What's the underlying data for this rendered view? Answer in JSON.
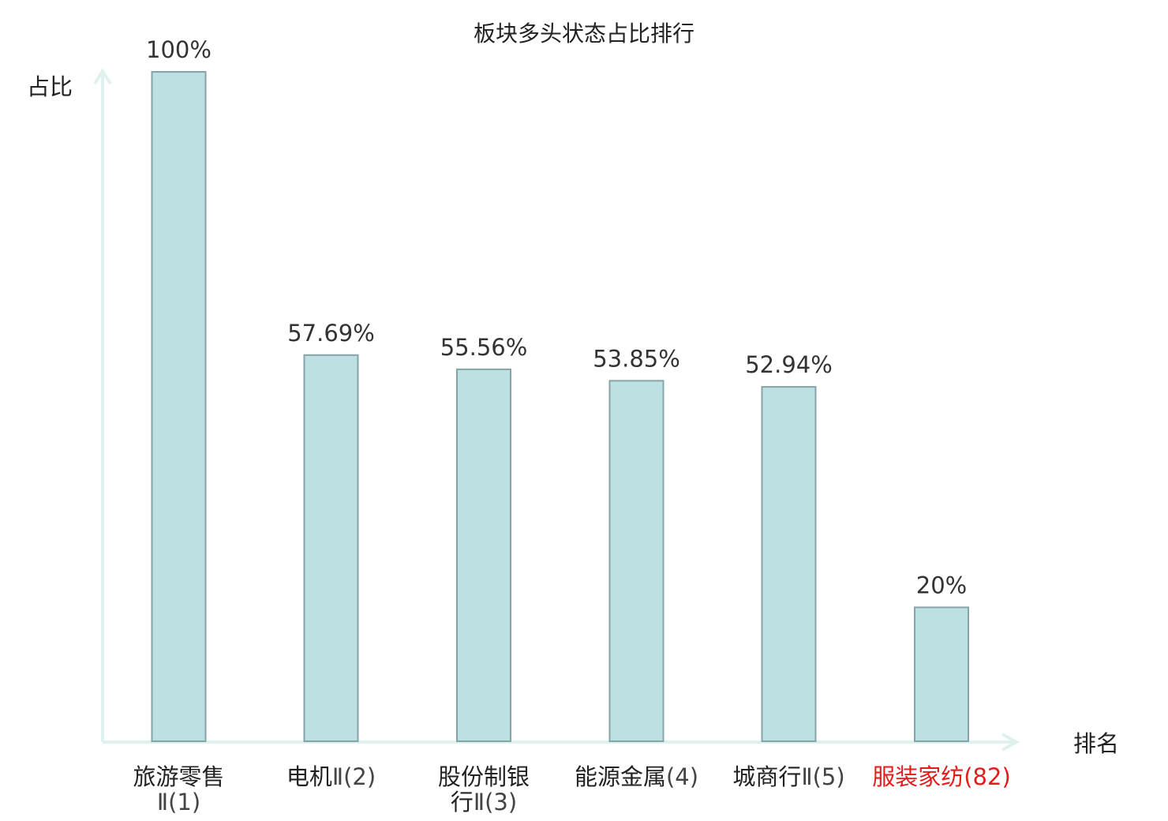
{
  "chart_data": {
    "type": "bar",
    "title": "板块多头状态占比排行",
    "ylabel": "占比",
    "xlabel": "排名",
    "ylim": [
      0,
      100
    ],
    "grid": false,
    "legend": "none",
    "categories": [
      "旅游零售Ⅱ(1)",
      "电机Ⅱ(2)",
      "股份制银行Ⅱ(3)",
      "能源金属(4)",
      "城商行Ⅱ(5)",
      "服装家纺(82)"
    ],
    "category_lines": [
      [
        {
          "text": "旅游零售",
          "cjk": true
        },
        {
          "text": "Ⅱ(1)",
          "cjk": false
        }
      ],
      [
        {
          "text": "电机",
          "cjk": true
        },
        {
          "text": "Ⅱ(2)",
          "cjk": false
        }
      ],
      [
        {
          "text": "股份制银",
          "cjk": true
        },
        {
          "text": "行",
          "cjk": true,
          "tail": "Ⅱ(3)"
        }
      ],
      [
        {
          "text": "能源金属",
          "cjk": true
        },
        {
          "text": "(4)",
          "cjk": false
        }
      ],
      [
        {
          "text": "城商行",
          "cjk": true
        },
        {
          "text": "Ⅱ(5)",
          "cjk": false
        }
      ],
      [
        {
          "text": "服装家纺",
          "cjk": true
        },
        {
          "text": "(82)",
          "cjk": false
        }
      ]
    ],
    "values": [
      100,
      57.69,
      55.56,
      53.85,
      52.94,
      20
    ],
    "value_labels": [
      "100%",
      "57.69%",
      "55.56%",
      "53.85%",
      "52.94%",
      "20%"
    ],
    "highlight_index": 5,
    "colors": {
      "bar_fill": "#bde0e3",
      "bar_stroke": "#86a4a8",
      "axis": "#dff1ef",
      "text": "#222222",
      "highlight_text": "#e41b1b"
    }
  }
}
